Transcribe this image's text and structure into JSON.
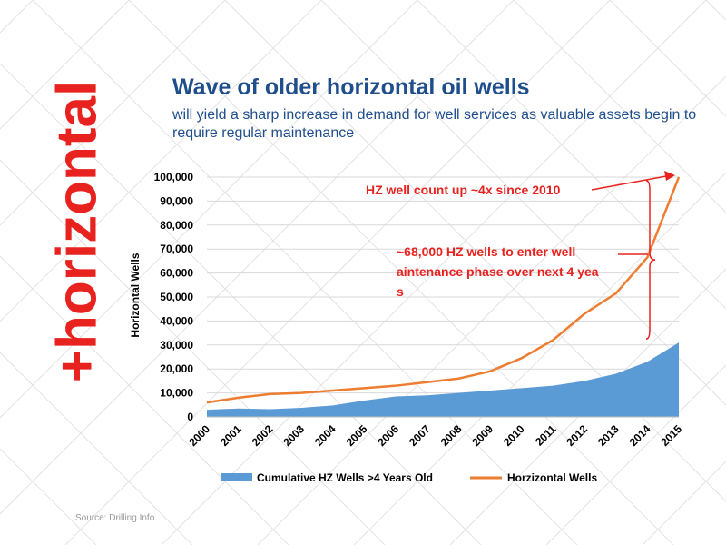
{
  "side_word": "+horizontal",
  "title": "Wave of older horizontal oil wells",
  "subtitle": "will yield a sharp increase in demand for well services as valuable assets begin to require regular maintenance",
  "source": "Source: Drilling Info.",
  "colors": {
    "area": "#5b9bd5",
    "line": "#ed7d31",
    "annotation": "#e8231f",
    "title": "#1f4e8c"
  },
  "chart_data": {
    "type": "area",
    "categories": [
      "2000",
      "2001",
      "2002",
      "2003",
      "2004",
      "2005",
      "2006",
      "2007",
      "2008",
      "2009",
      "2010",
      "2011",
      "2012",
      "2013",
      "2014",
      "2015"
    ],
    "series": [
      {
        "name": "Cumulative HZ Wells >4 Years Old",
        "type": "area",
        "values": [
          3000,
          3500,
          3200,
          3800,
          4800,
          6800,
          8500,
          9000,
          10000,
          11000,
          12000,
          13000,
          15000,
          18000,
          23000,
          31000
        ]
      },
      {
        "name": "Horzizontal Wells",
        "type": "line",
        "values": [
          6000,
          8000,
          9500,
          10000,
          11000,
          12000,
          13000,
          14500,
          16000,
          19000,
          24500,
          32000,
          43000,
          51500,
          66500,
          100000
        ]
      }
    ],
    "ylabel": "Horizontal Wells",
    "ylim": [
      0,
      100000
    ],
    "yticks": [
      "0",
      "10,000",
      "20,000",
      "30,000",
      "40,000",
      "50,000",
      "60,000",
      "70,000",
      "80,000",
      "90,000",
      "100,000"
    ],
    "legend_position": "bottom",
    "annotations": [
      "HZ well count up ~4x since 2010",
      "~68,000 HZ wells to enter well maintenance phase over next 4 years"
    ]
  }
}
